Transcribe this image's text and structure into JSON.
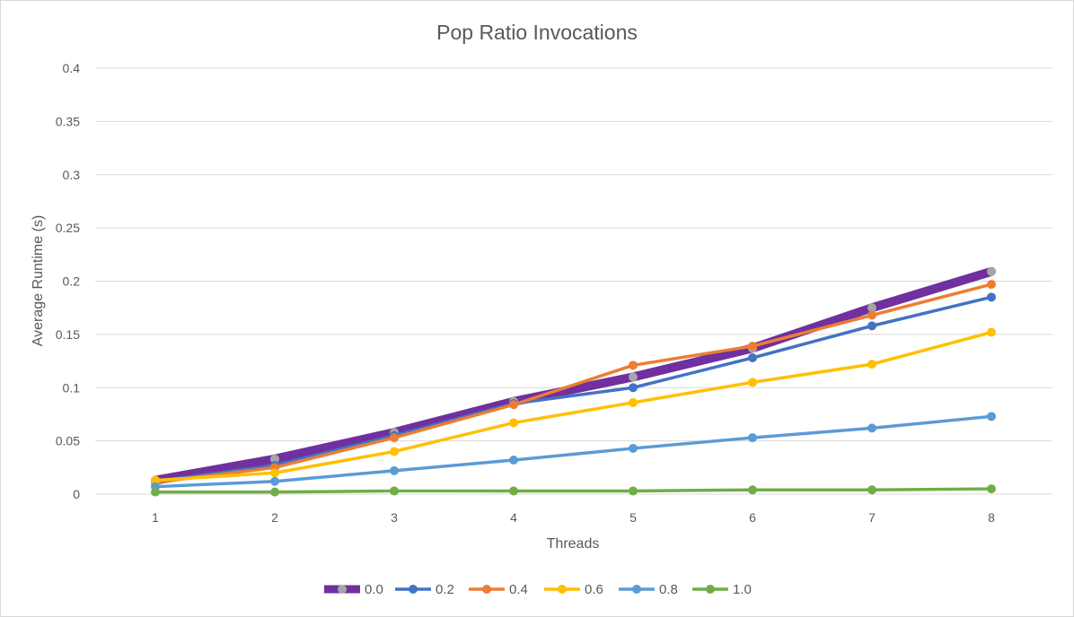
{
  "chart_data": {
    "type": "line",
    "title": "Pop Ratio Invocations",
    "xlabel": "Threads",
    "ylabel": "Average Runtime (s)",
    "x": [
      1,
      2,
      3,
      4,
      5,
      6,
      7,
      8
    ],
    "ylim": [
      0,
      0.4
    ],
    "y_ticks": [
      "0",
      "0.05",
      "0.1",
      "0.15",
      "0.2",
      "0.25",
      "0.3",
      "0.35",
      "0.4"
    ],
    "x_ticks": [
      "1",
      "2",
      "3",
      "4",
      "5",
      "6",
      "7",
      "8"
    ],
    "grid": "horizontal",
    "legend_position": "bottom",
    "series": [
      {
        "name": "0.0",
        "color": "#7030A0",
        "marker_color": "#A5A5A5",
        "values": [
          0.013,
          0.033,
          0.058,
          0.087,
          0.11,
          0.137,
          0.175,
          0.209
        ]
      },
      {
        "name": "0.2",
        "color": "#4472C4",
        "marker_color": "#4472C4",
        "values": [
          0.012,
          0.027,
          0.055,
          0.085,
          0.1,
          0.128,
          0.158,
          0.185
        ]
      },
      {
        "name": "0.4",
        "color": "#ED7D31",
        "marker_color": "#ED7D31",
        "values": [
          0.011,
          0.025,
          0.053,
          0.084,
          0.121,
          0.139,
          0.168,
          0.197
        ]
      },
      {
        "name": "0.6",
        "color": "#FFC000",
        "marker_color": "#FFC000",
        "values": [
          0.013,
          0.02,
          0.04,
          0.067,
          0.086,
          0.105,
          0.122,
          0.152
        ]
      },
      {
        "name": "0.8",
        "color": "#5B9BD5",
        "marker_color": "#5B9BD5",
        "values": [
          0.007,
          0.012,
          0.022,
          0.032,
          0.043,
          0.053,
          0.062,
          0.073
        ]
      },
      {
        "name": "1.0",
        "color": "#70AD47",
        "marker_color": "#70AD47",
        "values": [
          0.002,
          0.002,
          0.003,
          0.003,
          0.003,
          0.004,
          0.004,
          0.005
        ]
      }
    ]
  }
}
